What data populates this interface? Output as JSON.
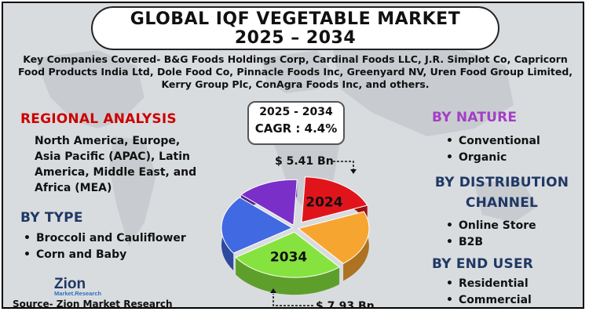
{
  "title": {
    "line1": "GLOBAL IQF VEGETABLE MARKET",
    "line2": "2025 – 2034"
  },
  "companies_text": "Key Companies Covered- B&G Foods Holdings Corp, Cardinal Foods LLC, J.R. Simplot Co, Capricorn Food Products India Ltd, Dole Food Co, Pinnacle Foods Inc, Greenyard NV, Uren Food Group Limited, Kerry Group Plc, ConAgra Foods Inc, and others.",
  "cagr": {
    "period": "2025 - 2034",
    "label": "CAGR : 4.4%"
  },
  "regional": {
    "heading": "REGIONAL ANALYSIS",
    "text": "North America, Europe, Asia Pacific (APAC), Latin America, Middle East, and Africa (MEA)"
  },
  "by_type": {
    "heading": "BY TYPE",
    "items": [
      "Broccoli and Cauliflower",
      "Corn and Baby"
    ]
  },
  "by_nature": {
    "heading": "BY NATURE",
    "items": [
      "Conventional",
      "Organic"
    ]
  },
  "by_distribution": {
    "heading_line1": "BY DISTRIBUTION",
    "heading_line2": "CHANNEL",
    "items": [
      "Online Store",
      "B2B"
    ]
  },
  "by_end_user": {
    "heading": "BY END USER",
    "items": [
      "Residential",
      "Commercial"
    ]
  },
  "logo": {
    "name": "Zion",
    "sub": "Market.Research"
  },
  "source": "Source- Zion Market Research",
  "colors": {
    "red_heading": "#cc0000",
    "navy_heading": "#1f3864",
    "purple_heading": "#a33fc4",
    "slice_red": "#e0151b",
    "slice_orange": "#f7a531",
    "slice_green": "#86e33f",
    "slice_blue": "#4169e1",
    "slice_purple": "#7a2fc8"
  },
  "chart_data": {
    "type": "pie",
    "slices": [
      {
        "label": "2024",
        "value": 5.41,
        "value_label": "$ 5.41 Bn",
        "color": "#e0151b"
      },
      {
        "label": "",
        "value": 6.0,
        "color": "#f7a531"
      },
      {
        "label": "2034",
        "value": 7.93,
        "value_label": "$ 7.93 Bn",
        "color": "#86e33f"
      },
      {
        "label": "",
        "value": 6.3,
        "color": "#4169e1"
      },
      {
        "label": "",
        "value": 4.2,
        "color": "#7a2fc8"
      }
    ]
  }
}
